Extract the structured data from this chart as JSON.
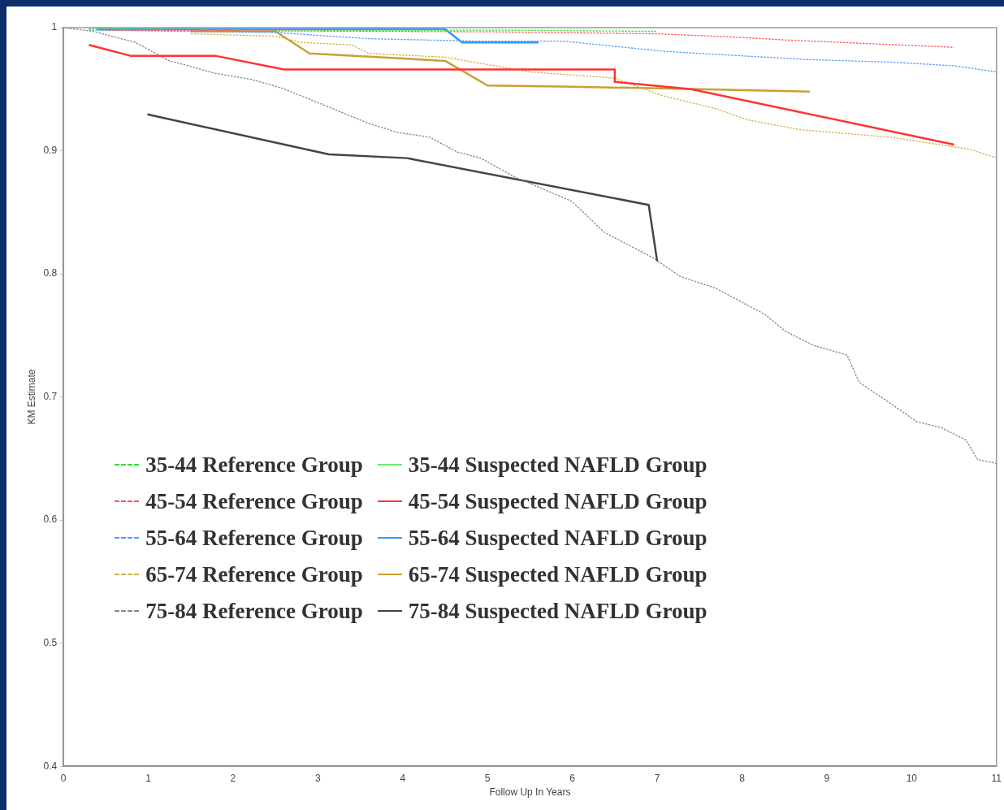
{
  "chart_data": {
    "type": "line",
    "xlabel": "Follow Up In Years",
    "ylabel": "KM Estimate",
    "xlim": [
      0,
      11
    ],
    "xticks": [
      0,
      1,
      2,
      3,
      4,
      5,
      6,
      7,
      8,
      9,
      10,
      11
    ],
    "ylim": [
      0.4,
      1
    ],
    "yticks": [
      0.4,
      0.5,
      0.6,
      0.7,
      0.8,
      0.9,
      1
    ],
    "grid": false,
    "legend": "center left",
    "marker": "none",
    "series": [
      {
        "name": "35-44 Reference Group",
        "color": "#33dd33",
        "line_style": "dashed",
        "x": [
          0.3,
          3,
          5,
          7
        ],
        "values": [
          0.999,
          0.998,
          0.998,
          0.997
        ]
      },
      {
        "name": "35-44 Suspected NAFLD Group",
        "color": "#66ee66",
        "line_style": "solid"
      },
      {
        "name": "45-54 Reference Group",
        "color": "#ff5555",
        "line_style": "dashed",
        "x": [
          0.5,
          5,
          7,
          8,
          8.5,
          9.5,
          10.5
        ],
        "values": [
          0.998,
          0.9966,
          0.995,
          0.992,
          0.99,
          0.987,
          0.984
        ]
      },
      {
        "name": "45-54 Suspected NAFLD Group",
        "color": "#ff3333",
        "line_style": "solid",
        "x": [
          0.3,
          0.8,
          1.8,
          2.6,
          6.5,
          6.5,
          7.4,
          10.5
        ],
        "values": [
          0.986,
          0.977,
          0.977,
          0.966,
          0.966,
          0.956,
          0.95,
          0.905
        ]
      },
      {
        "name": "55-64 Reference Group",
        "color": "#5599ff",
        "line_style": "dashed",
        "x": [
          0.3,
          2.5,
          3.6,
          4.9,
          5.9,
          7.05,
          7.5,
          8.8,
          9.75,
          10.5,
          11
        ],
        "values": [
          0.998,
          0.996,
          0.991,
          0.989,
          0.989,
          0.981,
          0.979,
          0.974,
          0.972,
          0.969,
          0.964
        ]
      },
      {
        "name": "55-64 Suspected NAFLD Group",
        "color": "#3399ff",
        "line_style": "solid",
        "x": [
          0.4,
          4.5,
          4.7,
          5.6
        ],
        "values": [
          0.9987,
          0.9987,
          0.988,
          0.988
        ]
      },
      {
        "name": "65-74 Reference Group",
        "color": "#d4b04a",
        "line_style": "dashed",
        "x": [
          1.5,
          2.5,
          2.8,
          3.4,
          3.6,
          4.5,
          5,
          5.5,
          5.9,
          6.5,
          7.05,
          7.7,
          8.07,
          8.7,
          9.75,
          10.7,
          11
        ],
        "values": [
          0.995,
          0.993,
          0.988,
          0.986,
          0.979,
          0.976,
          0.97,
          0.964,
          0.962,
          0.959,
          0.945,
          0.934,
          0.925,
          0.917,
          0.911,
          0.901,
          0.894
        ]
      },
      {
        "name": "65-74 Suspected NAFLD Group",
        "color": "#c8a032",
        "line_style": "solid",
        "x": [
          1.5,
          2.5,
          2.9,
          4.5,
          5,
          6,
          7.5,
          8.8
        ],
        "values": [
          0.997,
          0.997,
          0.979,
          0.973,
          0.953,
          0.952,
          0.95,
          0.948
        ]
      },
      {
        "name": "75-84 Reference Group",
        "color": "#888888",
        "line_style": "dashed",
        "x": [
          0,
          0.35,
          0.85,
          1.25,
          1.42,
          1.78,
          2.21,
          2.57,
          3.04,
          3.57,
          3.93,
          4.32,
          4.64,
          4.92,
          5.31,
          5.99,
          6.13,
          6.37,
          6.95,
          7.27,
          7.7,
          8.27,
          8.52,
          8.84,
          9.24,
          9.38,
          9.7,
          10.06,
          10.35,
          10.64,
          10.78,
          11
        ],
        "values": [
          1,
          0.997,
          0.988,
          0.973,
          0.97,
          0.963,
          0.958,
          0.951,
          0.938,
          0.923,
          0.915,
          0.911,
          0.899,
          0.894,
          0.879,
          0.859,
          0.85,
          0.834,
          0.813,
          0.798,
          0.788,
          0.767,
          0.753,
          0.742,
          0.734,
          0.712,
          0.697,
          0.68,
          0.675,
          0.665,
          0.649,
          0.646
        ]
      },
      {
        "name": "75-84 Suspected NAFLD Group",
        "color": "#444444",
        "line_style": "solid",
        "x": [
          0.99,
          3.13,
          4.05,
          6.9,
          7.0
        ],
        "values": [
          0.9295,
          0.897,
          0.894,
          0.856,
          0.81
        ]
      }
    ]
  }
}
